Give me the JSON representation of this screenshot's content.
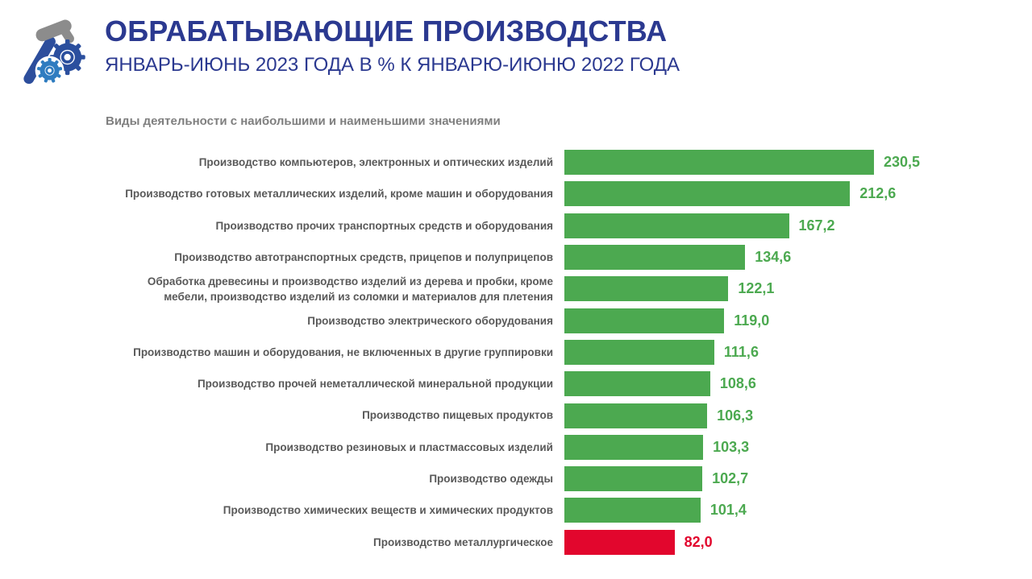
{
  "header": {
    "title": "ОБРАБАТЫВАЮЩИЕ ПРОИЗВОДСТВА",
    "subtitle": "ЯНВАРЬ-ИЮНЬ 2023 ГОДА В % К ЯНВАРЮ-ИЮНЮ 2022 ГОДА",
    "logo_icon": "hammer-and-gears-icon"
  },
  "section_label": "Виды деятельности с наибольшими и наименьшими значениями",
  "chart_data": {
    "type": "bar",
    "orientation": "horizontal",
    "title": "ОБРАБАТЫВАЮЩИЕ ПРОИЗВОДСТВА",
    "subtitle": "ЯНВАРЬ-ИЮНЬ 2023 ГОДА В % К ЯНВАРЮ-ИЮНЮ 2022 ГОДА",
    "caption": "Виды деятельности с наибольшими и наименьшими значениями",
    "unit": "% к январю-июню 2022 года",
    "xlim": [
      0,
      240
    ],
    "grid": false,
    "legend": false,
    "highlight_below": 100,
    "categories": [
      "Производство компьютеров, электронных и оптических изделий",
      "Производство готовых металлических изделий, кроме машин и оборудования",
      "Производство прочих транспортных средств и оборудования",
      "Производство автотранспортных средств, прицепов и полуприцепов",
      "Обработка древесины и производство изделий из дерева и пробки, кроме мебели, производство изделий из соломки и материалов для плетения",
      "Производство электрического оборудования",
      "Производство машин и оборудования, не включенных в другие группировки",
      "Производство прочей неметаллической минеральной продукции",
      "Производство пищевых продуктов",
      "Производство резиновых и пластмассовых изделий",
      "Производство одежды",
      "Производство химических веществ и химических продуктов",
      "Производство металлургическое"
    ],
    "values": [
      230.5,
      212.6,
      167.2,
      134.6,
      122.1,
      119.0,
      111.6,
      108.6,
      106.3,
      103.3,
      102.7,
      101.4,
      82.0
    ],
    "value_labels": [
      "230,5",
      "212,6",
      "167,2",
      "134,6",
      "122,1",
      "119,0",
      "111,6",
      "108,6",
      "106,3",
      "103,3",
      "102,7",
      "101,4",
      "82,0"
    ],
    "colors": {
      "positive": "#4CA950",
      "negative": "#E2062D"
    }
  },
  "colors": {
    "title_blue": "#2B3990",
    "label_gray": "#595959",
    "section_gray": "#7F7F7F",
    "bar_green": "#4CA950",
    "bar_red": "#E2062D",
    "logo_blue_dark": "#2D4E9C",
    "logo_blue_light": "#2F7CC0",
    "logo_gray": "#8C8C8C"
  }
}
